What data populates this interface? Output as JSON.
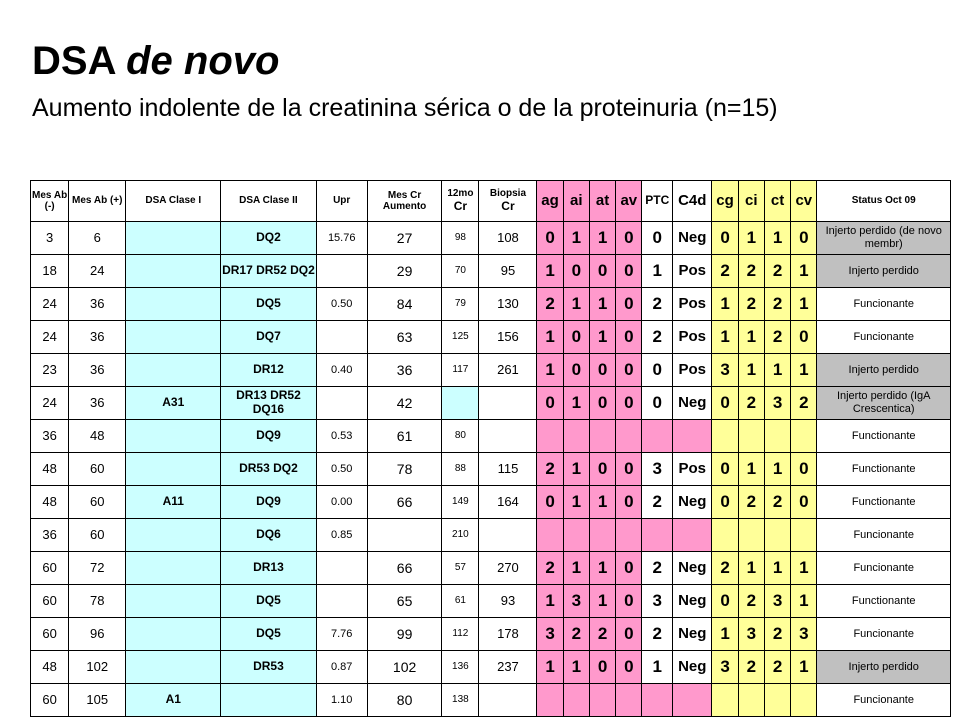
{
  "title": {
    "main": "DSA",
    "italic": "de novo"
  },
  "subtitle": "Aumento indolente de la creatinina sérica o de la proteinuria (n=15)",
  "table": {
    "headers": {
      "mes_neg": "Mes Ab (-)",
      "mes_pos": "Mes Ab (+)",
      "dsa1": "DSA Clase I",
      "dsa2": "DSA Clase II",
      "upr": "Upr",
      "mescr": "Mes Cr Aumento",
      "mo12_a": "12mo",
      "mo12_b": "Cr",
      "bx_a": "Biopsia",
      "bx_b": "Cr",
      "ag": "ag",
      "ai": "ai",
      "at": "at",
      "av": "av",
      "ptc": "PTC",
      "c4d": "C4d",
      "cg": "cg",
      "ci": "ci",
      "ct": "ct",
      "cv": "cv",
      "status": "Status Oct 09"
    },
    "rows": [
      {
        "mneg": "3",
        "mpos": "6",
        "d1": "",
        "d2": "DQ2",
        "upr": "15.76",
        "mcr": "27",
        "cr12": "98",
        "bx": "108",
        "ag": "0",
        "ai": "1",
        "at": "1",
        "av": "0",
        "ptc": "0",
        "c4d": "Neg",
        "cg": "0",
        "ci": "1",
        "ct": "1",
        "cv": "0",
        "status": "Injerto perdido (de novo membr)",
        "lost": true
      },
      {
        "mneg": "18",
        "mpos": "24",
        "d1": "",
        "d2": "DR17 DR52 DQ2",
        "upr": "",
        "mcr": "29",
        "cr12": "70",
        "bx": "95",
        "ag": "1",
        "ai": "0",
        "at": "0",
        "av": "0",
        "ptc": "1",
        "c4d": "Pos",
        "cg": "2",
        "ci": "2",
        "ct": "2",
        "cv": "1",
        "status": "Injerto perdido",
        "lost": true
      },
      {
        "mneg": "24",
        "mpos": "36",
        "d1": "",
        "d2": "DQ5",
        "upr": "0.50",
        "mcr": "84",
        "cr12": "79",
        "bx": "130",
        "ag": "2",
        "ai": "1",
        "at": "1",
        "av": "0",
        "ptc": "2",
        "c4d": "Pos",
        "cg": "1",
        "ci": "2",
        "ct": "2",
        "cv": "1",
        "status": "Funcionante",
        "lost": false
      },
      {
        "mneg": "24",
        "mpos": "36",
        "d1": "",
        "d2": "DQ7",
        "upr": "",
        "mcr": "63",
        "cr12": "125",
        "bx": "156",
        "ag": "1",
        "ai": "0",
        "at": "1",
        "av": "0",
        "ptc": "2",
        "c4d": "Pos",
        "cg": "1",
        "ci": "1",
        "ct": "2",
        "cv": "0",
        "status": "Funcionante",
        "lost": false
      },
      {
        "mneg": "23",
        "mpos": "36",
        "d1": "",
        "d2": "DR12",
        "upr": "0.40",
        "mcr": "36",
        "cr12": "117",
        "bx": "261",
        "ag": "1",
        "ai": "0",
        "at": "0",
        "av": "0",
        "ptc": "0",
        "c4d": "Pos",
        "cg": "3",
        "ci": "1",
        "ct": "1",
        "cv": "1",
        "status": "Injerto perdido",
        "lost": true
      },
      {
        "mneg": "24",
        "mpos": "36",
        "d1": "A31",
        "d2": "DR13 DR52 DQ16",
        "upr": "",
        "mcr": "42",
        "cr12": "",
        "bx": "",
        "ag": "0",
        "ai": "1",
        "at": "0",
        "av": "0",
        "ptc": "0",
        "c4d": "Neg",
        "cg": "0",
        "ci": "2",
        "ct": "3",
        "cv": "2",
        "status": "Injerto perdido (IgA Crescentica)",
        "lost": true
      },
      {
        "mneg": "36",
        "mpos": "48",
        "d1": "",
        "d2": "DQ9",
        "upr": "0.53",
        "mcr": "61",
        "cr12": "80",
        "bx": "",
        "ag": "",
        "ai": "",
        "at": "",
        "av": "",
        "ptc": "",
        "c4d": "",
        "cg": "",
        "ci": "",
        "ct": "",
        "cv": "",
        "status": "Functionante",
        "lost": false
      },
      {
        "mneg": "48",
        "mpos": "60",
        "d1": "",
        "d2": "DR53 DQ2",
        "upr": "0.50",
        "mcr": "78",
        "cr12": "88",
        "bx": "115",
        "ag": "2",
        "ai": "1",
        "at": "0",
        "av": "0",
        "ptc": "3",
        "c4d": "Pos",
        "cg": "0",
        "ci": "1",
        "ct": "1",
        "cv": "0",
        "status": "Functionante",
        "lost": false
      },
      {
        "mneg": "48",
        "mpos": "60",
        "d1": "A11",
        "d2": "DQ9",
        "upr": "0.00",
        "mcr": "66",
        "cr12": "149",
        "bx": "164",
        "ag": "0",
        "ai": "1",
        "at": "1",
        "av": "0",
        "ptc": "2",
        "c4d": "Neg",
        "cg": "0",
        "ci": "2",
        "ct": "2",
        "cv": "0",
        "status": "Functionante",
        "lost": false
      },
      {
        "mneg": "36",
        "mpos": "60",
        "d1": "",
        "d2": "DQ6",
        "upr": "0.85",
        "mcr": "",
        "cr12": "210",
        "bx": "",
        "ag": "",
        "ai": "",
        "at": "",
        "av": "",
        "ptc": "",
        "c4d": "",
        "cg": "",
        "ci": "",
        "ct": "",
        "cv": "",
        "status": "Funcionante",
        "lost": false
      },
      {
        "mneg": "60",
        "mpos": "72",
        "d1": "",
        "d2": "DR13",
        "upr": "",
        "mcr": "66",
        "cr12": "57",
        "bx": "270",
        "ag": "2",
        "ai": "1",
        "at": "1",
        "av": "0",
        "ptc": "2",
        "c4d": "Neg",
        "cg": "2",
        "ci": "1",
        "ct": "1",
        "cv": "1",
        "status": "Funcionante",
        "lost": false
      },
      {
        "mneg": "60",
        "mpos": "78",
        "d1": "",
        "d2": "DQ5",
        "upr": "",
        "mcr": "65",
        "cr12": "61",
        "bx": "93",
        "ag": "1",
        "ai": "3",
        "at": "1",
        "av": "0",
        "ptc": "3",
        "c4d": "Neg",
        "cg": "0",
        "ci": "2",
        "ct": "3",
        "cv": "1",
        "status": "Functionante",
        "lost": false
      },
      {
        "mneg": "60",
        "mpos": "96",
        "d1": "",
        "d2": "DQ5",
        "upr": "7.76",
        "mcr": "99",
        "cr12": "112",
        "bx": "178",
        "ag": "3",
        "ai": "2",
        "at": "2",
        "av": "0",
        "ptc": "2",
        "c4d": "Neg",
        "cg": "1",
        "ci": "3",
        "ct": "2",
        "cv": "3",
        "status": "Funcionante",
        "lost": false
      },
      {
        "mneg": "48",
        "mpos": "102",
        "d1": "",
        "d2": "DR53",
        "upr": "0.87",
        "mcr": "102",
        "cr12": "136",
        "bx": "237",
        "ag": "1",
        "ai": "1",
        "at": "0",
        "av": "0",
        "ptc": "1",
        "c4d": "Neg",
        "cg": "3",
        "ci": "2",
        "ct": "2",
        "cv": "1",
        "status": "Injerto perdido",
        "lost": true
      },
      {
        "mneg": "60",
        "mpos": "105",
        "d1": "A1",
        "d2": "",
        "upr": "1.10",
        "mcr": "80",
        "cr12": "138",
        "bx": "",
        "ag": "",
        "ai": "",
        "at": "",
        "av": "",
        "ptc": "",
        "c4d": "",
        "cg": "",
        "ci": "",
        "ct": "",
        "cv": "",
        "status": "Funcionante",
        "lost": false
      }
    ]
  },
  "colors": {
    "cyan": "#ccffff",
    "pink": "#ff99cc",
    "yellow": "#ffff99",
    "gray": "#c0c0c0"
  }
}
